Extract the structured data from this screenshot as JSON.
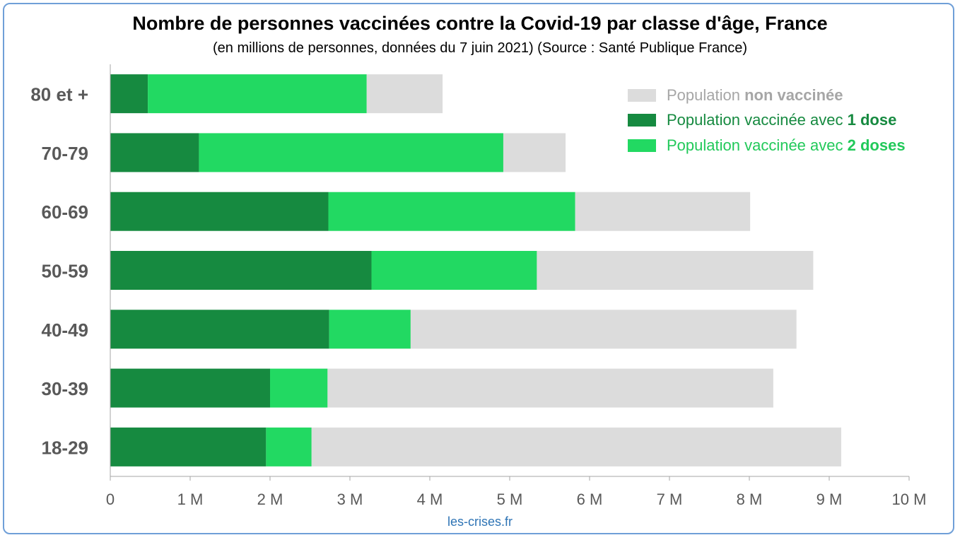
{
  "chart_data": {
    "type": "bar",
    "orientation": "horizontal",
    "stacked": true,
    "title": "Nombre de personnes vaccinées contre la Covid-19 par classe d'âge, France",
    "subtitle": "(en millions de personnes, données du 7 juin 2021) (Source : Santé Publique France)",
    "categories": [
      "80 et +",
      "70-79",
      "60-69",
      "50-59",
      "40-49",
      "30-39",
      "18-29"
    ],
    "series": [
      {
        "name_parts": [
          "Population vaccinée avec ",
          "1 dose"
        ],
        "color": "#168a40",
        "values": [
          0.47,
          1.11,
          2.73,
          3.27,
          2.74,
          2.0,
          1.95
        ]
      },
      {
        "name_parts": [
          "Population vaccinée avec ",
          "2 doses"
        ],
        "color": "#22d962",
        "values": [
          2.74,
          3.81,
          3.09,
          2.07,
          1.02,
          0.72,
          0.57
        ]
      },
      {
        "name_parts": [
          "Population ",
          "non vaccinée"
        ],
        "color": "#dcdcdc",
        "values": [
          0.95,
          0.78,
          2.19,
          3.46,
          4.83,
          5.58,
          6.63
        ]
      }
    ],
    "xlim": [
      0,
      10
    ],
    "x_ticks": [
      "0",
      "1 M",
      "2 M",
      "3 M",
      "4 M",
      "5 M",
      "6 M",
      "7 M",
      "8 M",
      "9 M",
      "10 M"
    ],
    "legend_position": "top-right",
    "grid": false
  },
  "footer": {
    "source": "les-crises.fr"
  },
  "colors": {
    "label_text": "#595959",
    "legend_text_nonvax": "#a6a6a6",
    "frame": "#6f9fd8",
    "source_text": "#2e74b5"
  }
}
